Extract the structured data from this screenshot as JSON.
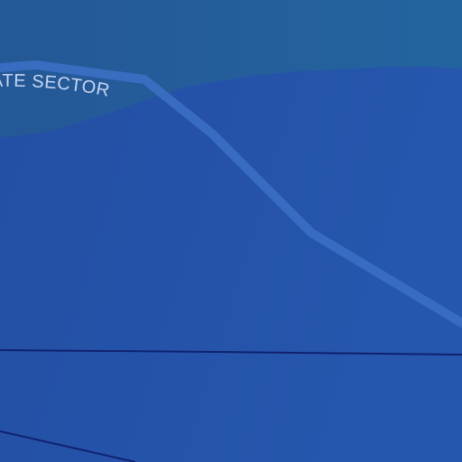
{
  "map": {
    "labels": {
      "sector": "ATE SECTOR"
    },
    "colors": {
      "land": "#2552a6",
      "land_edge": "#2a5cb3",
      "water": "#23609a",
      "water_deep": "#245a9c",
      "coast_border": "#3b6fc4",
      "road": "#0f2170",
      "label_text": "#c8d6f2"
    }
  }
}
